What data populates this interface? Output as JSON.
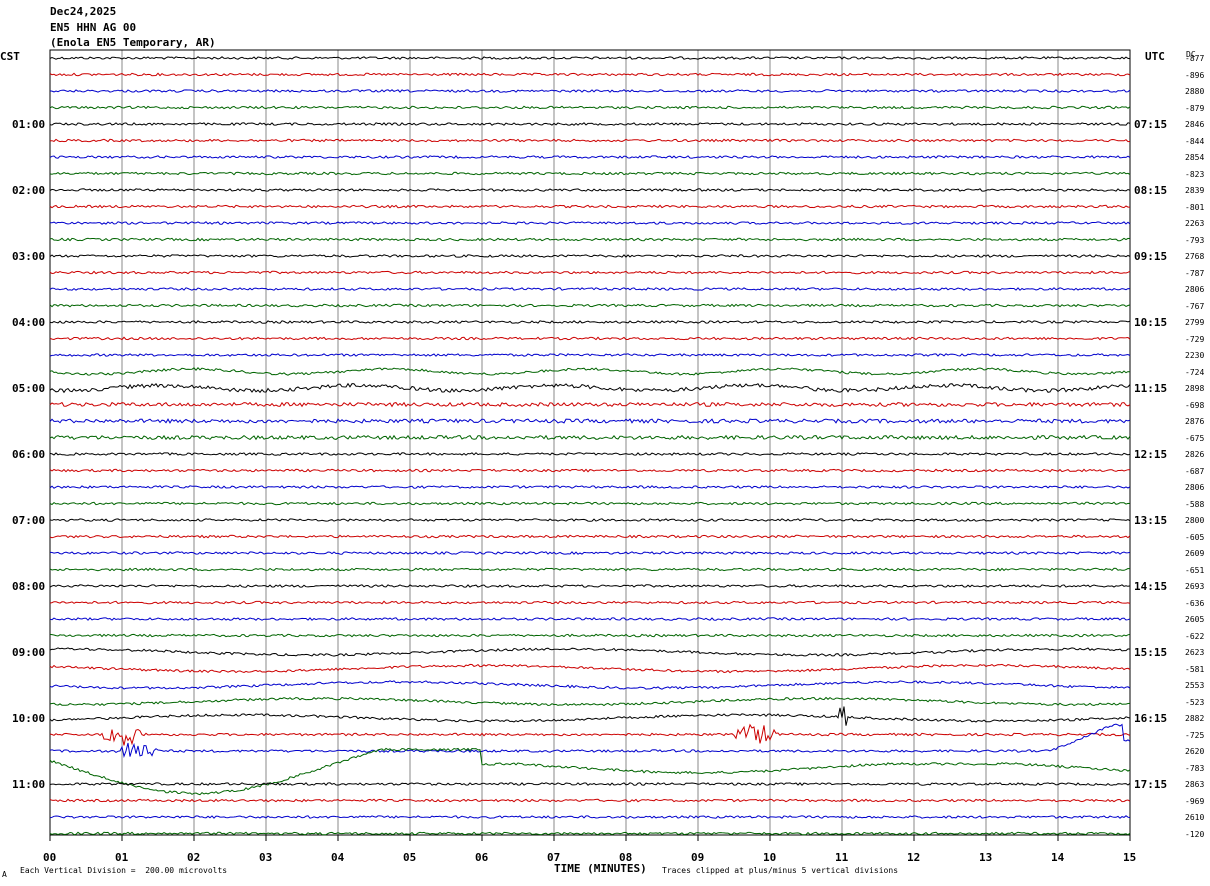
{
  "header": {
    "date": "Dec24,2025",
    "station": "EN5 HHN AG 00",
    "location": "(Enola EN5 Temporary, AR)"
  },
  "axis_labels": {
    "left_tz": "CST",
    "right_tz": "UTC",
    "dc": "DC",
    "xlabel": "TIME (MINUTES)"
  },
  "footer": {
    "left_note": "Each Vertical Division =  200.00 microvolts",
    "right_note": "Traces clipped at plus/minus 5 vertical divisions",
    "corner_mark": "A"
  },
  "colors": {
    "cycle": [
      "#000000",
      "#cc0000",
      "#0000cc",
      "#006400"
    ],
    "grid": "#888888",
    "background": "#ffffff"
  },
  "chart_data": {
    "type": "line",
    "subtype": "helicorder",
    "minutes_per_row": 15,
    "x_ticks": [
      "00",
      "01",
      "02",
      "03",
      "04",
      "05",
      "06",
      "07",
      "08",
      "09",
      "10",
      "11",
      "12",
      "13",
      "14",
      "15"
    ],
    "left_time_labels": [
      "01:00",
      "02:00",
      "03:00",
      "04:00",
      "05:00",
      "06:00",
      "07:00",
      "08:00",
      "09:00",
      "10:00",
      "11:00"
    ],
    "right_time_labels": [
      "07:15",
      "08:15",
      "09:15",
      "10:15",
      "11:15",
      "12:15",
      "13:15",
      "14:15",
      "15:15",
      "16:15",
      "17:15"
    ],
    "dc_values": [
      "-877",
      "-896",
      "2880",
      "-879",
      "2846",
      "-844",
      "2854",
      "-823",
      "2839",
      "-801",
      "2263",
      "-793",
      "2768",
      "-787",
      "2806",
      "-767",
      "2799",
      "-729",
      "2230",
      "-724",
      "2898",
      "-698",
      "2876",
      "-675",
      "2826",
      "-687",
      "2806",
      "-588",
      "2800",
      "-605",
      "2609",
      "-651",
      "2693",
      "-636",
      "2605",
      "-622",
      "2623",
      "-581",
      "2553",
      "-523",
      "2882",
      "-725",
      "2620",
      "-783",
      "2863",
      "-969",
      "2610",
      "-120"
    ],
    "events": [
      {
        "row": 21,
        "minute": 4.5,
        "type": "long-period oscillation start"
      },
      {
        "row": 41,
        "minute": 1.0,
        "type": "burst"
      },
      {
        "row": 41,
        "minute": 9.8,
        "type": "burst"
      },
      {
        "row": 40,
        "minute": 11.0,
        "type": "spike"
      },
      {
        "row": 42,
        "minute": 1.2,
        "type": "burst"
      },
      {
        "row": 43,
        "minute": 2.0,
        "type": "large drift"
      }
    ]
  }
}
